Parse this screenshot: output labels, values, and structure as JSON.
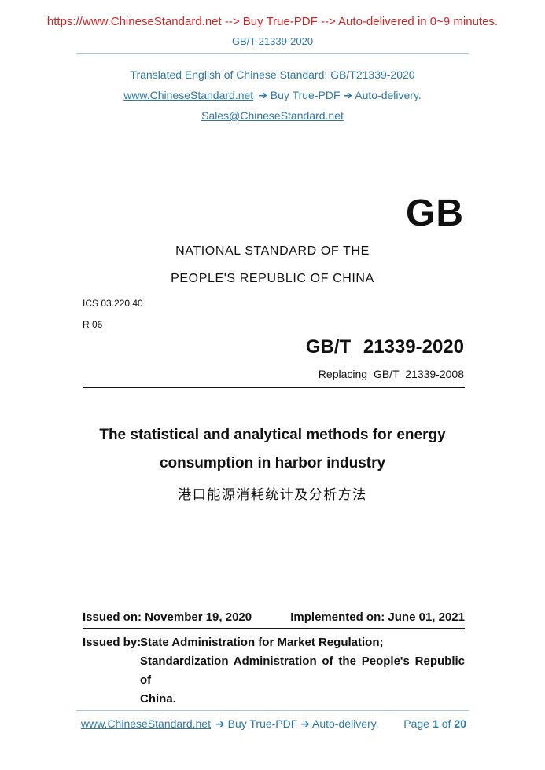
{
  "header": {
    "promo": "https://www.ChineseStandard.net --> Buy True-PDF --> Auto-delivered in 0~9 minutes.",
    "doc_code": "GB/T 21339-2020",
    "translated": "Translated English of Chinese Standard: GB/T21339-2020",
    "link_text": "www.ChineseStandard.net",
    "link_rest": "➔ Buy True-PDF ➔ Auto-delivery.",
    "email": "Sales@ChineseStandard.net"
  },
  "masthead": {
    "gb_logo": "GB",
    "national_line1": "NATIONAL STANDARD OF THE",
    "national_line2": "PEOPLE'S REPUBLIC OF CHINA",
    "ics": "ICS 03.220.40",
    "class_code": "R 06",
    "std_code": "GB/T 21339-2020",
    "replacing": "Replacing GB/T 21339-2008"
  },
  "title": {
    "en_line1": "The statistical and analytical methods for energy",
    "en_line2": "consumption in harbor industry",
    "zh": "港口能源消耗统计及分析方法"
  },
  "issuance": {
    "issued_on": "Issued on: November 19, 2020",
    "implemented_on": "Implemented on: June 01, 2021",
    "issued_by_label": "Issued by:",
    "issued_by_line1": "State Administration for Market Regulation;",
    "issued_by_line2": "Standardization Administration of the People's Republic of",
    "issued_by_line3": "China."
  },
  "footer": {
    "link_text": "www.ChineseStandard.net",
    "link_rest": "➔ Buy True-PDF ➔ Auto-delivery.",
    "page_label": "Page",
    "page_current": "1",
    "of_label": "of",
    "page_total": "20"
  },
  "colors": {
    "promo_red": "#cc2525",
    "link_blue": "#2e78a8",
    "rule_light_blue": "#a3c6da",
    "text_black": "#111111"
  }
}
